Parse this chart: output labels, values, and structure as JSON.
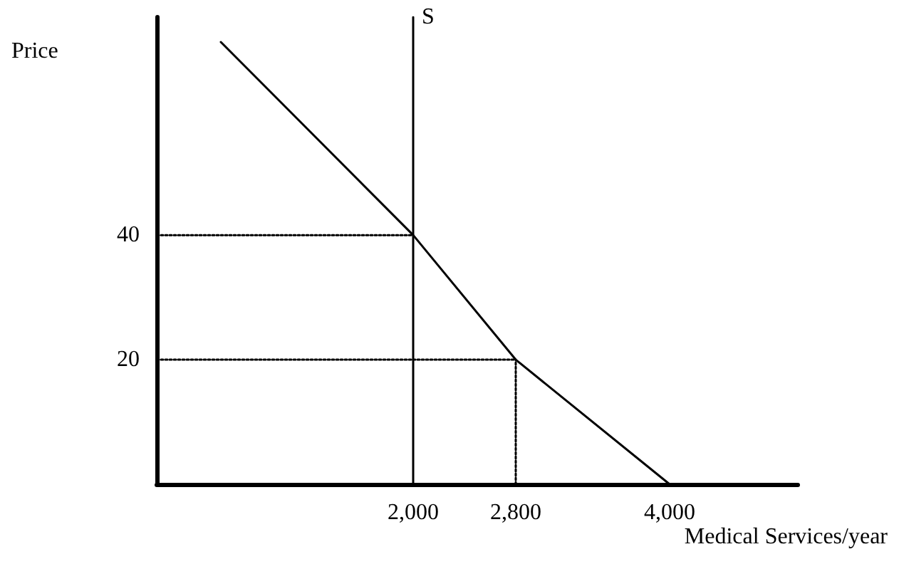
{
  "chart_data": {
    "type": "line",
    "xlabel": "Medical Services/year",
    "ylabel": "Price",
    "xlim": [
      0,
      5000
    ],
    "ylim": [
      0,
      75
    ],
    "xticks": [
      {
        "value": 2000,
        "label": "2,000"
      },
      {
        "value": 2800,
        "label": "2,800"
      },
      {
        "value": 4000,
        "label": "4,000"
      }
    ],
    "yticks": [
      20,
      40
    ],
    "grid": false,
    "legend": false,
    "marker": "none",
    "series": [
      {
        "color": "#000000",
        "x": [
          500,
          2000,
          2800,
          4000
        ],
        "values": [
          71,
          40,
          20,
          0
        ]
      },
      {
        "name": "S",
        "color": "#000000",
        "x": [
          2000,
          2000
        ],
        "values": [
          0,
          75
        ]
      },
      {
        "color": "#000000",
        "line_style": "dotted",
        "x": [
          0,
          2000
        ],
        "values": [
          40,
          40
        ]
      },
      {
        "color": "#000000",
        "line_style": "dotted",
        "x": [
          0,
          2800
        ],
        "values": [
          20,
          20
        ]
      },
      {
        "color": "#000000",
        "line_style": "dotted",
        "x": [
          2800,
          2800
        ],
        "values": [
          0,
          20
        ]
      }
    ]
  }
}
